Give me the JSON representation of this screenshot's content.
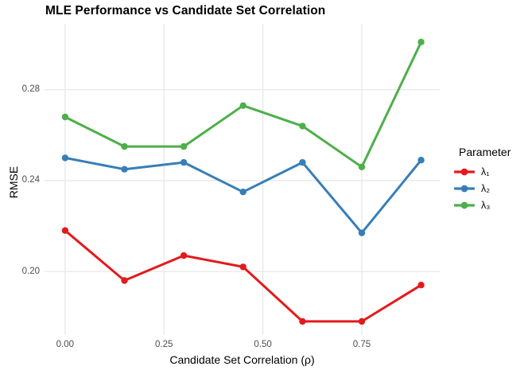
{
  "chart_data": {
    "type": "line",
    "title": "MLE Performance vs Candidate Set Correlation",
    "xlabel": "Candidate Set Correlation (ρ)",
    "ylabel": "RMSE",
    "legend_title": "Parameter",
    "legend_position": "right",
    "background": "#FFFFFF",
    "grid": "major",
    "grid_color": "#E8E8E8",
    "tick_label_color": "#4D4D4D",
    "x": [
      0.0,
      0.15,
      0.3,
      0.45,
      0.6,
      0.75,
      0.9
    ],
    "series": [
      {
        "name": "λ₁",
        "color": "#E41A1C",
        "values": [
          0.218,
          0.196,
          0.207,
          0.202,
          0.178,
          0.178,
          0.194
        ]
      },
      {
        "name": "λ₂",
        "color": "#377EB8",
        "values": [
          0.25,
          0.245,
          0.248,
          0.235,
          0.248,
          0.217,
          0.249
        ]
      },
      {
        "name": "λ₃",
        "color": "#4DAF4A",
        "values": [
          0.268,
          0.255,
          0.255,
          0.273,
          0.264,
          0.246,
          0.301
        ]
      }
    ],
    "x_ticks": {
      "values": [
        0.0,
        0.25,
        0.5,
        0.75
      ],
      "labels": [
        "0.00",
        "0.25",
        "0.50",
        "0.75"
      ]
    },
    "y_ticks": {
      "values": [
        0.2,
        0.24,
        0.28
      ],
      "labels": [
        "0.20",
        "0.24",
        "0.28"
      ]
    },
    "xlim": [
      -0.052,
      0.947
    ],
    "ylim": [
      0.172,
      0.309
    ]
  }
}
